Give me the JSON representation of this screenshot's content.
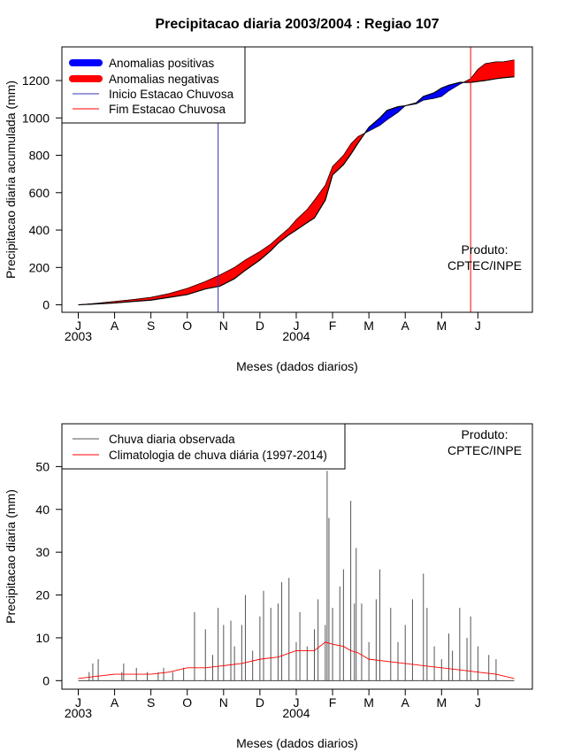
{
  "chart_data": [
    {
      "type": "area",
      "title": "Precipitacao diaria 2003/2004 : Regiao 107",
      "xlabel": "Meses (dados diarios)",
      "ylabel": "Precipitacao diaria acumulada (mm)",
      "x_ticks": [
        "J",
        "A",
        "S",
        "O",
        "N",
        "D",
        "J",
        "F",
        "M",
        "A",
        "M",
        "J"
      ],
      "year_labels": [
        {
          "label": "2003",
          "month_index": 0
        },
        {
          "label": "2004",
          "month_index": 6
        }
      ],
      "x_unit": "months since 1 Jul 2003",
      "xlim": [
        -0.45,
        12.5
      ],
      "ylim": [
        -40,
        1380
      ],
      "y_ticks": [
        0,
        200,
        400,
        600,
        800,
        1000,
        1200
      ],
      "legend": {
        "position": "top-left",
        "entries": [
          {
            "label": "Anomalias positivas",
            "color": "#0000ff",
            "style": "thick"
          },
          {
            "label": "Anomalias negativas",
            "color": "#ff0000",
            "style": "thick"
          },
          {
            "label": "Inicio Estacao Chuvosa",
            "color": "#3333bb",
            "style": "thin"
          },
          {
            "label": "Fim Estacao Chuvosa",
            "color": "#ff0000",
            "style": "thin"
          }
        ]
      },
      "credit": [
        "Produto:",
        "CPTEC/INPE"
      ],
      "observed": {
        "x": [
          0,
          0.5,
          1,
          1.5,
          2,
          2.5,
          3,
          3.5,
          3.9,
          4.3,
          4.6,
          5,
          5.3,
          5.5,
          5.8,
          6,
          6.3,
          6.5,
          6.8,
          7,
          7.3,
          7.5,
          7.7,
          8,
          8.3,
          8.5,
          8.8,
          9,
          9.3,
          9.5,
          9.8,
          10,
          10.2,
          10.5,
          10.8,
          11,
          11.2,
          11.5,
          11.7,
          12
        ],
        "values": [
          0,
          5,
          10,
          18,
          25,
          40,
          55,
          85,
          100,
          140,
          185,
          240,
          290,
          330,
          375,
          400,
          440,
          465,
          560,
          695,
          750,
          805,
          865,
          950,
          1000,
          1040,
          1060,
          1065,
          1080,
          1115,
          1135,
          1160,
          1175,
          1190,
          1190,
          1195,
          1200,
          1210,
          1215,
          1220
        ]
      },
      "climatology": {
        "x": [
          0,
          0.5,
          1,
          1.5,
          2,
          2.5,
          3,
          3.5,
          3.9,
          4.3,
          4.6,
          5,
          5.3,
          5.5,
          5.8,
          6,
          6.3,
          6.5,
          6.8,
          7,
          7.3,
          7.5,
          7.7,
          8,
          8.3,
          8.5,
          8.8,
          9,
          9.3,
          9.5,
          9.8,
          10,
          10.2,
          10.5,
          10.8,
          11,
          11.2,
          11.5,
          11.7,
          12
        ],
        "values": [
          0,
          8,
          18,
          28,
          40,
          60,
          88,
          125,
          160,
          200,
          240,
          285,
          325,
          360,
          410,
          455,
          510,
          560,
          640,
          740,
          800,
          860,
          900,
          930,
          960,
          990,
          1030,
          1065,
          1075,
          1095,
          1105,
          1115,
          1145,
          1180,
          1210,
          1260,
          1290,
          1300,
          1300,
          1310
        ]
      },
      "vlines": [
        {
          "label": "Inicio Estacao Chuvosa",
          "x": 3.85
        },
        {
          "label": "Fim Estacao Chuvosa",
          "x": 10.8
        }
      ]
    },
    {
      "type": "bar",
      "title": "",
      "xlabel": "Meses (dados diarios)",
      "ylabel": "Precipitacao diaria (mm)",
      "x_ticks": [
        "J",
        "A",
        "S",
        "O",
        "N",
        "D",
        "J",
        "F",
        "M",
        "A",
        "M",
        "J"
      ],
      "year_labels": [
        {
          "label": "2003",
          "month_index": 0
        },
        {
          "label": "2004",
          "month_index": 6
        }
      ],
      "x_unit": "months since 1 Jul 2003",
      "xlim": [
        -0.45,
        12.5
      ],
      "ylim": [
        -2,
        60
      ],
      "y_ticks": [
        0,
        10,
        20,
        30,
        40,
        50
      ],
      "legend": {
        "position": "top-left",
        "entries": [
          {
            "label": "Chuva diaria observada",
            "color": "#555555",
            "style": "thin"
          },
          {
            "label": "Climatologia de chuva diária (1997-2014)",
            "color": "#ff0000",
            "style": "thin"
          }
        ]
      },
      "credit": [
        "Produto:",
        "CPTEC/INPE"
      ],
      "observed_daily": {
        "x": [
          0.3,
          0.4,
          0.55,
          1.2,
          1.25,
          1.6,
          1.9,
          2.2,
          2.35,
          2.6,
          2.9,
          3.2,
          3.5,
          3.7,
          3.85,
          4.0,
          4.2,
          4.3,
          4.5,
          4.6,
          4.8,
          5.0,
          5.1,
          5.3,
          5.5,
          5.6,
          5.8,
          6.0,
          6.1,
          6.3,
          6.5,
          6.6,
          6.8,
          6.85,
          6.9,
          7.0,
          7.2,
          7.3,
          7.5,
          7.6,
          7.65,
          7.8,
          8.0,
          8.2,
          8.3,
          8.6,
          8.8,
          9.0,
          9.2,
          9.5,
          9.6,
          9.8,
          10.0,
          10.2,
          10.3,
          10.5,
          10.7,
          10.8,
          11.0,
          11.3,
          11.5
        ],
        "values": [
          2,
          4,
          5,
          2,
          4,
          3,
          2,
          2,
          3,
          2,
          3,
          16,
          12,
          6,
          17,
          13,
          14,
          8,
          13,
          20,
          7,
          15,
          21,
          17,
          18,
          23,
          24,
          9,
          16,
          8,
          12,
          19,
          13,
          49,
          38,
          17,
          22,
          26,
          42,
          18,
          31,
          18,
          9,
          19,
          26,
          17,
          9,
          13,
          19,
          25,
          17,
          8,
          5,
          11,
          7,
          17,
          10,
          15,
          8,
          6,
          5
        ]
      },
      "climatology_daily": {
        "x": [
          0,
          0.5,
          1,
          1.5,
          2,
          2.5,
          3,
          3.5,
          4,
          4.5,
          5,
          5.5,
          6,
          6.5,
          6.8,
          7,
          7.3,
          7.5,
          7.7,
          8,
          8.5,
          9,
          9.5,
          10,
          10.5,
          11,
          11.5,
          12
        ],
        "values": [
          0.5,
          1,
          1.5,
          1.5,
          1.5,
          2,
          3,
          3,
          3.5,
          4,
          5,
          5.5,
          7,
          7,
          9,
          8.5,
          8,
          7,
          6.5,
          5,
          4.5,
          4,
          3.5,
          3,
          2.5,
          2,
          1.5,
          0.5
        ]
      }
    }
  ]
}
